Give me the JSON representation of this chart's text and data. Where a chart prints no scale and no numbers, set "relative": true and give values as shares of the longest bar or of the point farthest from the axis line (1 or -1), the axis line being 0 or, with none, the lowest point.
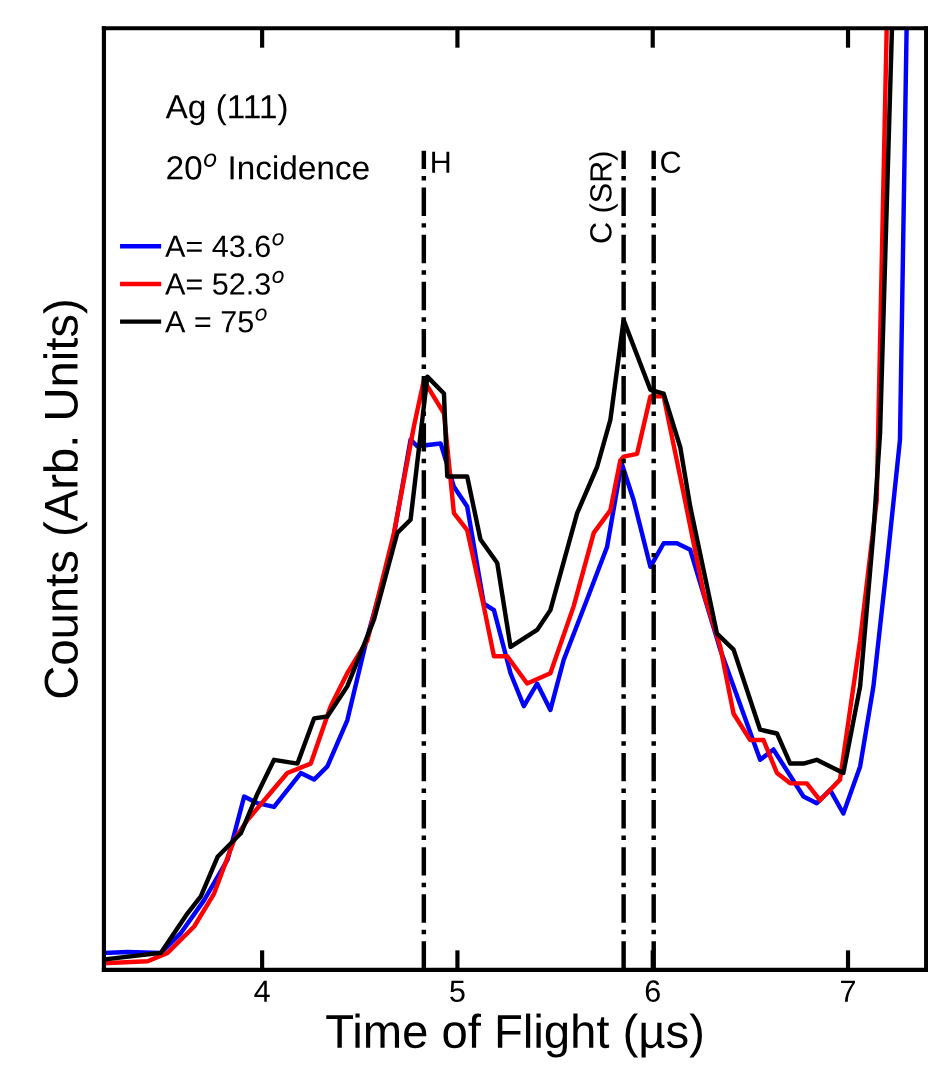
{
  "chart_data": {
    "type": "line",
    "xlabel": "Time of Flight (µs)",
    "ylabel": "Counts (Arb. Units)",
    "relative": true,
    "xlim": [
      3.19,
      7.4
    ],
    "xticks": [
      4,
      5,
      6,
      7
    ],
    "grid": false,
    "legend": "top left",
    "marker": "none",
    "line_style": "solid",
    "annotations": [
      "Ag (111)",
      "20$^{o}$ Incidence"
    ],
    "ref_lines": [
      {
        "axis": "x",
        "value": 4.828,
        "label": "H",
        "color": "#000000",
        "line_style": "dashdot"
      },
      {
        "axis": "x",
        "value": 5.851,
        "label": "C (SR)",
        "color": "#000000",
        "line_style": "dashdot"
      },
      {
        "axis": "x",
        "value": 6.005,
        "label": "C",
        "color": "#000000",
        "line_style": "dashdot"
      }
    ],
    "series": [
      {
        "name": "A= 43.6$^{o}$",
        "color": "#0000ff",
        "x": [
          3.192,
          3.311,
          3.482,
          3.584,
          3.703,
          3.823,
          3.908,
          3.976,
          4.061,
          4.198,
          4.266,
          4.334,
          4.436,
          4.539,
          4.658,
          4.76,
          4.794,
          4.914,
          4.982,
          5.05,
          5.135,
          5.187,
          5.272,
          5.34,
          5.408,
          5.476,
          5.544,
          5.663,
          5.766,
          5.841,
          5.902,
          5.988,
          6.056,
          6.124,
          6.192,
          6.346,
          6.55,
          6.618,
          6.772,
          6.84,
          6.908,
          6.976,
          7.062,
          7.13,
          7.198,
          7.266,
          7.3
        ],
        "values": [
          0.018,
          0.019,
          0.018,
          0.039,
          0.074,
          0.117,
          0.184,
          0.177,
          0.173,
          0.209,
          0.202,
          0.216,
          0.265,
          0.354,
          0.442,
          0.563,
          0.556,
          0.559,
          0.513,
          0.492,
          0.389,
          0.382,
          0.315,
          0.28,
          0.304,
          0.276,
          0.329,
          0.393,
          0.449,
          0.538,
          0.499,
          0.428,
          0.453,
          0.453,
          0.446,
          0.34,
          0.223,
          0.234,
          0.184,
          0.177,
          0.191,
          0.166,
          0.216,
          0.301,
          0.428,
          0.563,
          1.0
        ]
      },
      {
        "name": "A= 52.3$^{o}$",
        "color": "#ff0000",
        "x": [
          3.192,
          3.414,
          3.516,
          3.652,
          3.754,
          3.857,
          3.925,
          4.027,
          4.129,
          4.249,
          4.351,
          4.436,
          4.539,
          4.675,
          4.777,
          4.828,
          4.931,
          4.982,
          5.05,
          5.135,
          5.187,
          5.255,
          5.357,
          5.476,
          5.595,
          5.698,
          5.783,
          5.834,
          5.851,
          5.92,
          5.988,
          6.056,
          6.158,
          6.261,
          6.346,
          6.414,
          6.499,
          6.567,
          6.636,
          6.704,
          6.789,
          6.857,
          6.959,
          7.062,
          7.147,
          7.198
        ],
        "values": [
          0.007,
          0.009,
          0.018,
          0.046,
          0.081,
          0.138,
          0.159,
          0.184,
          0.209,
          0.219,
          0.28,
          0.315,
          0.35,
          0.464,
          0.577,
          0.626,
          0.591,
          0.485,
          0.467,
          0.386,
          0.333,
          0.333,
          0.304,
          0.315,
          0.386,
          0.464,
          0.488,
          0.541,
          0.545,
          0.548,
          0.609,
          0.609,
          0.506,
          0.4,
          0.343,
          0.272,
          0.244,
          0.244,
          0.209,
          0.198,
          0.198,
          0.18,
          0.202,
          0.35,
          0.499,
          1.0
        ]
      },
      {
        "name": "A = 75$^{o}$",
        "color": "#000000",
        "x": [
          3.192,
          3.482,
          3.618,
          3.686,
          3.772,
          3.891,
          3.976,
          4.061,
          4.181,
          4.266,
          4.334,
          4.436,
          4.573,
          4.692,
          4.76,
          4.846,
          4.931,
          4.948,
          5.05,
          5.118,
          5.204,
          5.272,
          5.408,
          5.476,
          5.613,
          5.715,
          5.783,
          5.851,
          5.988,
          6.056,
          6.141,
          6.192,
          6.329,
          6.414,
          6.55,
          6.636,
          6.704,
          6.772,
          6.84,
          6.976,
          7.062,
          7.13,
          7.164,
          7.225
        ],
        "values": [
          0.011,
          0.018,
          0.06,
          0.078,
          0.12,
          0.145,
          0.187,
          0.223,
          0.219,
          0.267,
          0.269,
          0.301,
          0.372,
          0.464,
          0.478,
          0.63,
          0.612,
          0.524,
          0.524,
          0.457,
          0.432,
          0.343,
          0.361,
          0.382,
          0.485,
          0.534,
          0.584,
          0.69,
          0.616,
          0.612,
          0.555,
          0.492,
          0.357,
          0.34,
          0.255,
          0.251,
          0.219,
          0.219,
          0.223,
          0.209,
          0.301,
          0.464,
          0.57,
          1.0
        ]
      }
    ]
  }
}
